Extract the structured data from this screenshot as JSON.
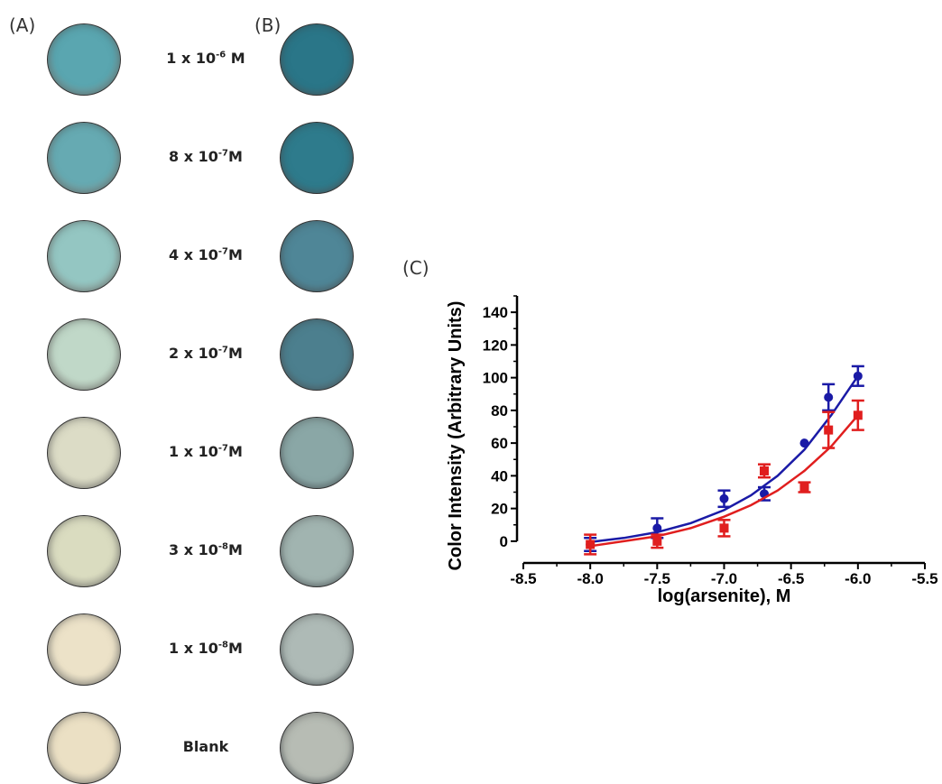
{
  "panels": {
    "a": "(A)",
    "b": "(B)",
    "c": "(C)"
  },
  "rows": [
    {
      "base": "1 x 10",
      "exp": "-6",
      "unit": " M",
      "colorA": "#5aa6b0",
      "colorB": "#2a7688"
    },
    {
      "base": "8 x 10",
      "exp": "-7",
      "unit": "M",
      "colorA": "#66aab2",
      "colorB": "#2e7b8c"
    },
    {
      "base": "4 x 10",
      "exp": "-7",
      "unit": "M",
      "colorA": "#94c6c2",
      "colorB": "#4f8697"
    },
    {
      "base": "2 x 10",
      "exp": "-7",
      "unit": "M",
      "colorA": "#c0d8c8",
      "colorB": "#4c7f8e"
    },
    {
      "base": "1 x 10",
      "exp": "-7",
      "unit": "M",
      "colorA": "#dcdcc6",
      "colorB": "#8aa7a6"
    },
    {
      "base": "3 x 10",
      "exp": "-8",
      "unit": "M",
      "colorA": "#dadcc0",
      "colorB": "#a1b4b0"
    },
    {
      "base": "1 x 10",
      "exp": "-8",
      "unit": "M",
      "colorA": "#ece2c8",
      "colorB": "#aebab6"
    },
    {
      "text": "Blank",
      "colorA": "#ebe0c4",
      "colorB": "#b7bcb4"
    }
  ],
  "chart_data": {
    "type": "scatter",
    "xlabel": "log(arsenite), M",
    "ylabel": "Color  Intensity (Arbitrary Units)",
    "xlim": [
      -8.5,
      -5.5
    ],
    "ylim": [
      -10,
      150
    ],
    "xticks": [
      "-8.5",
      "-8.0",
      "-7.5",
      "-7.0",
      "-6.5",
      "-6.0",
      "-5.5"
    ],
    "xtick_values": [
      -8.5,
      -8.0,
      -7.5,
      -7.0,
      -6.5,
      -6.0,
      -5.5
    ],
    "yticks": [
      "0",
      "20",
      "40",
      "60",
      "80",
      "100",
      "120",
      "140"
    ],
    "ytick_values": [
      0,
      20,
      40,
      60,
      80,
      100,
      120,
      140
    ],
    "grid": false,
    "series": [
      {
        "color": "#1a1aa6",
        "marker": "circle",
        "points": [
          {
            "x": -8.0,
            "y": -2,
            "err": 4
          },
          {
            "x": -7.5,
            "y": 8,
            "err": 6
          },
          {
            "x": -7.0,
            "y": 26,
            "err": 5
          },
          {
            "x": -6.7,
            "y": 29,
            "err": 4
          },
          {
            "x": -6.4,
            "y": 60,
            "err": 0
          },
          {
            "x": -6.22,
            "y": 88,
            "err": 8
          },
          {
            "x": -6.0,
            "y": 101,
            "err": 6
          }
        ],
        "fit": [
          {
            "x": -8.0,
            "y": -0.5
          },
          {
            "x": -7.75,
            "y": 2
          },
          {
            "x": -7.5,
            "y": 5.5
          },
          {
            "x": -7.25,
            "y": 11
          },
          {
            "x": -7.0,
            "y": 19
          },
          {
            "x": -6.8,
            "y": 28
          },
          {
            "x": -6.6,
            "y": 40
          },
          {
            "x": -6.4,
            "y": 56
          },
          {
            "x": -6.2,
            "y": 77
          },
          {
            "x": -6.0,
            "y": 101
          }
        ]
      },
      {
        "color": "#e01e1e",
        "marker": "square",
        "points": [
          {
            "x": -8.0,
            "y": -2,
            "err": 6
          },
          {
            "x": -7.5,
            "y": 0,
            "err": 4
          },
          {
            "x": -7.0,
            "y": 8,
            "err": 5
          },
          {
            "x": -6.7,
            "y": 43,
            "err": 4
          },
          {
            "x": -6.4,
            "y": 33,
            "err": 3
          },
          {
            "x": -6.22,
            "y": 68,
            "err": 11
          },
          {
            "x": -6.0,
            "y": 77,
            "err": 9
          }
        ],
        "fit": [
          {
            "x": -8.0,
            "y": -3
          },
          {
            "x": -7.75,
            "y": 0
          },
          {
            "x": -7.5,
            "y": 3
          },
          {
            "x": -7.25,
            "y": 8
          },
          {
            "x": -7.0,
            "y": 15
          },
          {
            "x": -6.8,
            "y": 22
          },
          {
            "x": -6.6,
            "y": 31
          },
          {
            "x": -6.4,
            "y": 43
          },
          {
            "x": -6.2,
            "y": 58
          },
          {
            "x": -6.0,
            "y": 77
          }
        ]
      }
    ]
  }
}
